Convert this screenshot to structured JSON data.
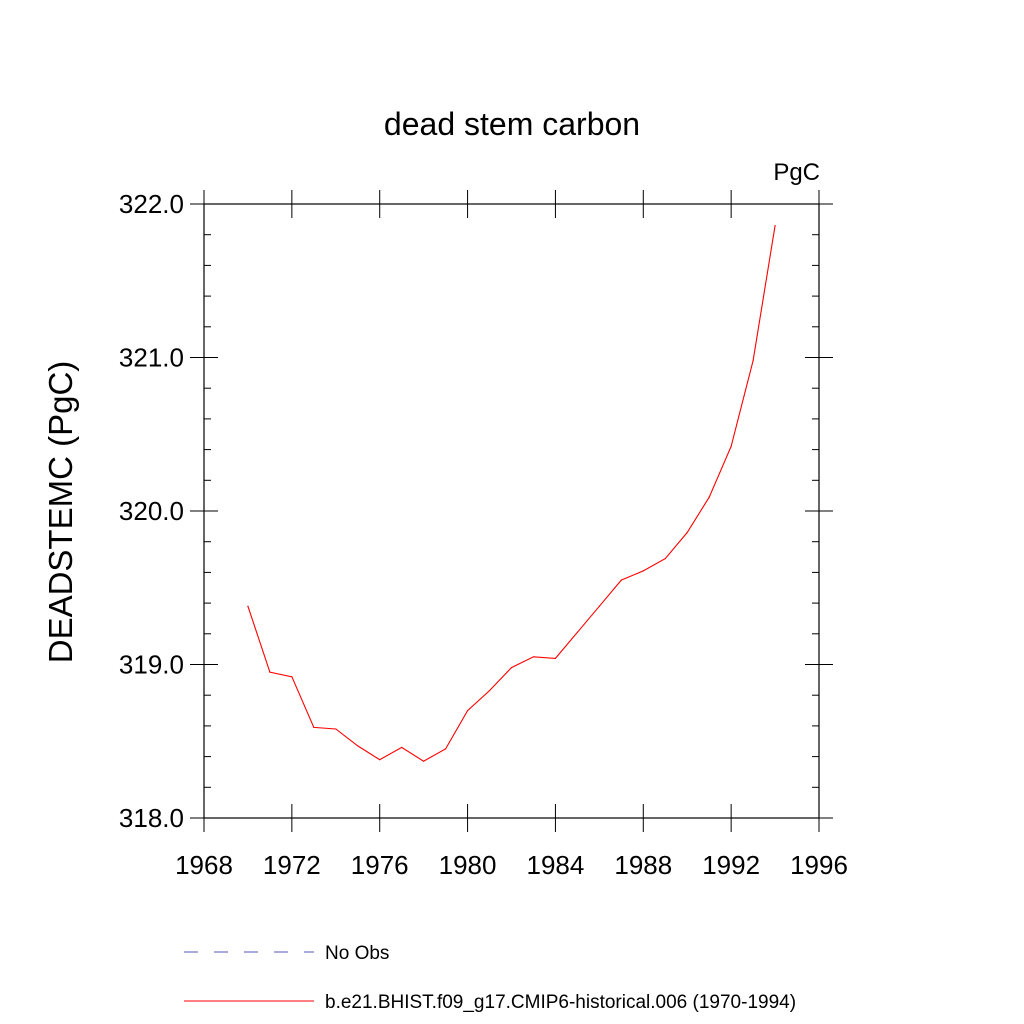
{
  "chart_data": {
    "type": "line",
    "title": "dead stem carbon",
    "units_label": "PgC",
    "xlabel": "",
    "ylabel": "DEADSTEMC  (PgC)",
    "xlim": [
      1968,
      1996
    ],
    "ylim": [
      318.0,
      322.0
    ],
    "x_ticks": [
      1968,
      1972,
      1976,
      1980,
      1984,
      1988,
      1992,
      1996
    ],
    "x_tick_labels": [
      "1968",
      "1972",
      "1976",
      "1980",
      "1984",
      "1988",
      "1992",
      "1996"
    ],
    "y_ticks": [
      318.0,
      319.0,
      320.0,
      321.0,
      322.0
    ],
    "y_tick_labels": [
      "318.0",
      "319.0",
      "320.0",
      "321.0",
      "322.0"
    ],
    "series": [
      {
        "name": "b.e21.BHIST.f09_g17.CMIP6-historical.006 (1970-1994)",
        "color": "#ff0000",
        "style": "solid",
        "x": [
          1970,
          1971,
          1972,
          1973,
          1974,
          1975,
          1976,
          1977,
          1978,
          1979,
          1980,
          1981,
          1982,
          1983,
          1984,
          1985,
          1986,
          1987,
          1988,
          1989,
          1990,
          1991,
          1992,
          1993,
          1994
        ],
        "y": [
          319.38,
          318.95,
          318.92,
          318.59,
          318.58,
          318.47,
          318.38,
          318.46,
          318.37,
          318.45,
          318.7,
          318.83,
          318.98,
          319.05,
          319.04,
          319.21,
          319.38,
          319.55,
          319.61,
          319.69,
          319.86,
          320.09,
          320.42,
          320.98,
          321.86
        ]
      }
    ],
    "legend": [
      {
        "label": "No Obs",
        "color": "#5555bb",
        "style": "dashed"
      },
      {
        "label": "b.e21.BHIST.f09_g17.CMIP6-historical.006 (1970-1994)",
        "color": "#ff0000",
        "style": "solid"
      }
    ],
    "legend_position": "bottom"
  }
}
